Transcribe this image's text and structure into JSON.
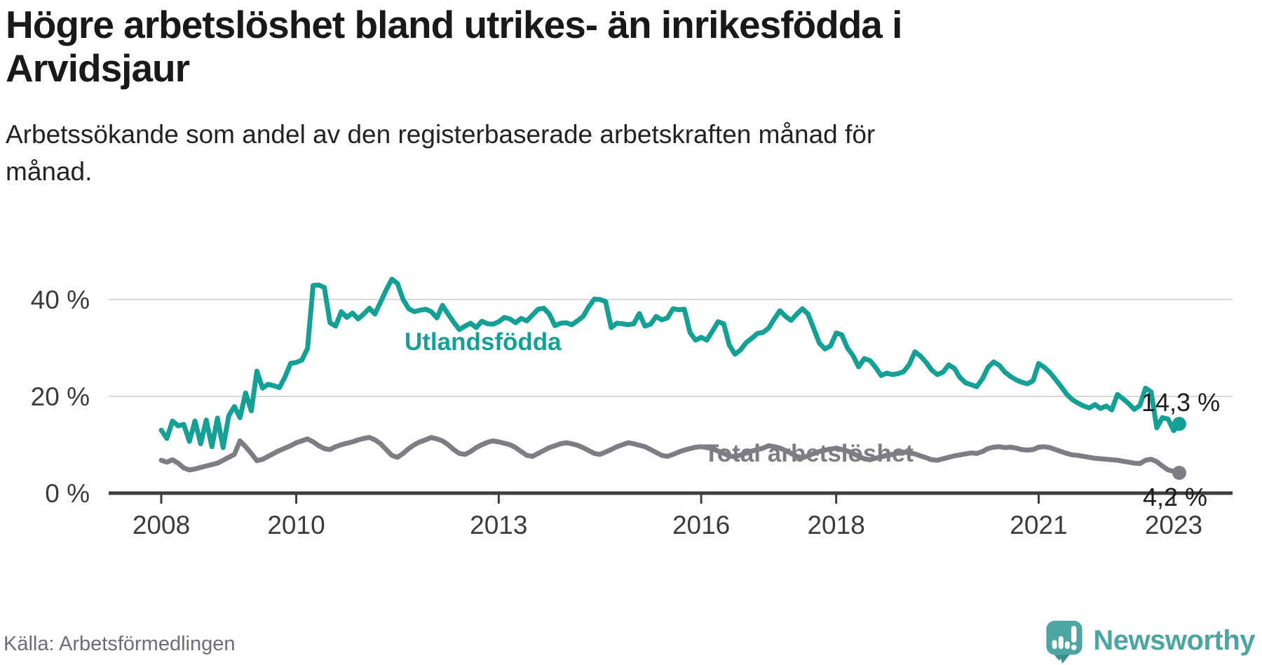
{
  "header": {
    "title_lines": [
      "Högre arbetslöshet bland utrikes- än inrikesfödda i",
      "Arvidsjaur"
    ],
    "subtitle_lines": [
      "Arbetssökande som andel av den registerbaserade arbetskraften månad för",
      "månad."
    ]
  },
  "chart_data": {
    "type": "line",
    "unit": "percent",
    "x_range": {
      "start": "2008-01",
      "end": "2023-02",
      "frequency": "monthly"
    },
    "ylim": [
      0,
      45
    ],
    "grid": "horizontal",
    "legend_position": "inline-labels",
    "y_ticks": [
      {
        "value": 0,
        "label": "0 %"
      },
      {
        "value": 20,
        "label": "20 %"
      },
      {
        "value": 40,
        "label": "40 %"
      }
    ],
    "x_ticks": [
      {
        "label": "2008",
        "month_index": 0
      },
      {
        "label": "2010",
        "month_index": 24
      },
      {
        "label": "2013",
        "month_index": 60
      },
      {
        "label": "2016",
        "month_index": 96
      },
      {
        "label": "2018",
        "month_index": 120
      },
      {
        "label": "2021",
        "month_index": 156
      },
      {
        "label": "2023",
        "month_index": 180
      }
    ],
    "series": [
      {
        "name": "Utlandsfödda",
        "color": "#14a094",
        "end_label": "14,3 %",
        "end_value": 14.3,
        "values": [
          13.0,
          11.3,
          14.9,
          13.9,
          14.2,
          10.7,
          14.9,
          10.2,
          15.1,
          9.6,
          15.5,
          9.4,
          16.0,
          17.9,
          15.6,
          20.7,
          17.0,
          25.2,
          21.7,
          22.5,
          22.2,
          21.8,
          24.0,
          26.8,
          27.0,
          27.5,
          29.9,
          42.9,
          43.0,
          42.5,
          35.2,
          34.5,
          37.5,
          36.3,
          37.2,
          36.0,
          37.0,
          38.2,
          37.0,
          39.5,
          42.0,
          44.2,
          43.3,
          40.0,
          38.1,
          37.5,
          37.8,
          38.0,
          37.5,
          36.2,
          38.8,
          37.0,
          35.3,
          33.8,
          34.5,
          35.1,
          34.2,
          35.5,
          35.0,
          34.9,
          35.4,
          36.3,
          36.0,
          35.2,
          36.1,
          35.6,
          36.8,
          38.0,
          38.2,
          37.0,
          34.6,
          35.1,
          35.2,
          34.8,
          35.6,
          36.5,
          38.5,
          40.1,
          40.0,
          39.6,
          34.2,
          35.1,
          35.0,
          34.8,
          35.0,
          37.1,
          34.5,
          34.9,
          36.5,
          35.8,
          36.2,
          38.1,
          37.9,
          38.0,
          33.2,
          31.6,
          32.2,
          31.6,
          33.5,
          35.4,
          35.0,
          30.6,
          28.7,
          29.6,
          31.1,
          32.0,
          33.0,
          33.2,
          34.1,
          36.0,
          37.7,
          36.5,
          35.7,
          37.0,
          38.1,
          37.0,
          34.0,
          31.0,
          29.8,
          30.4,
          33.1,
          32.7,
          30.0,
          28.4,
          26.1,
          27.8,
          27.4,
          26.0,
          24.3,
          24.8,
          24.5,
          24.7,
          25.1,
          26.6,
          29.2,
          28.3,
          27.0,
          25.4,
          24.5,
          25.0,
          26.5,
          25.8,
          23.9,
          22.8,
          22.4,
          22.0,
          23.6,
          26.0,
          27.1,
          26.4,
          25.0,
          24.1,
          23.4,
          22.9,
          22.6,
          23.2,
          26.8,
          26.0,
          24.9,
          23.5,
          22.0,
          20.4,
          19.3,
          18.6,
          18.0,
          17.6,
          18.3,
          17.5,
          18.0,
          17.2,
          20.4,
          19.5,
          18.5,
          17.3,
          18.1,
          21.7,
          20.9,
          13.5,
          15.6,
          15.3,
          12.9,
          14.3
        ]
      },
      {
        "name": "Total arbetslöshet",
        "color": "#7d7d84",
        "end_label": "4,2 %",
        "end_value": 4.2,
        "values": [
          6.8,
          6.4,
          6.9,
          6.2,
          5.2,
          4.8,
          5.0,
          5.3,
          5.6,
          5.9,
          6.2,
          6.8,
          7.4,
          8.0,
          10.8,
          9.6,
          8.2,
          6.7,
          7.0,
          7.6,
          8.2,
          8.8,
          9.3,
          9.8,
          10.4,
          10.8,
          11.2,
          10.6,
          9.8,
          9.2,
          9.0,
          9.6,
          10.0,
          10.3,
          10.6,
          11.0,
          11.3,
          11.5,
          11.0,
          10.2,
          9.0,
          7.8,
          7.4,
          8.2,
          9.2,
          10.0,
          10.6,
          11.0,
          11.5,
          11.2,
          10.8,
          10.0,
          9.0,
          8.2,
          8.0,
          8.6,
          9.4,
          10.0,
          10.5,
          10.8,
          10.6,
          10.3,
          10.0,
          9.4,
          8.6,
          7.8,
          7.6,
          8.2,
          8.8,
          9.4,
          9.8,
          10.2,
          10.4,
          10.2,
          9.9,
          9.4,
          8.8,
          8.2,
          8.0,
          8.5,
          9.0,
          9.6,
          10.0,
          10.4,
          10.2,
          9.9,
          9.6,
          9.0,
          8.4,
          7.8,
          7.6,
          8.0,
          8.5,
          8.9,
          9.2,
          9.5,
          9.6,
          9.4,
          9.2,
          8.7,
          8.2,
          7.7,
          7.5,
          7.9,
          8.3,
          8.7,
          9.0,
          9.3,
          9.8,
          9.6,
          9.3,
          8.8,
          8.2,
          7.6,
          7.3,
          7.7,
          8.2,
          8.6,
          8.9,
          9.1,
          9.3,
          9.0,
          8.7,
          8.2,
          7.6,
          7.1,
          6.9,
          7.2,
          7.5,
          7.8,
          8.0,
          8.3,
          8.5,
          8.3,
          8.1,
          7.7,
          7.3,
          6.9,
          6.8,
          7.1,
          7.4,
          7.7,
          7.9,
          8.1,
          8.3,
          8.2,
          8.6,
          9.2,
          9.5,
          9.6,
          9.4,
          9.5,
          9.3,
          9.0,
          8.9,
          9.0,
          9.5,
          9.6,
          9.4,
          9.0,
          8.6,
          8.2,
          7.9,
          7.8,
          7.6,
          7.4,
          7.2,
          7.1,
          7.0,
          6.9,
          6.8,
          6.6,
          6.4,
          6.2,
          6.1,
          6.8,
          7.0,
          6.5,
          5.6,
          4.8,
          4.5,
          4.2
        ]
      }
    ]
  },
  "footer": {
    "source": "Källa: Arbetsförmedlingen",
    "brand": "Newsworthy"
  },
  "colors": {
    "accent_teal": "#14a094",
    "series_gray": "#7d7d84",
    "gridline": "#d9d9d9",
    "axis": "#3d3d3d",
    "logo_teal": "#4ea6a2"
  }
}
